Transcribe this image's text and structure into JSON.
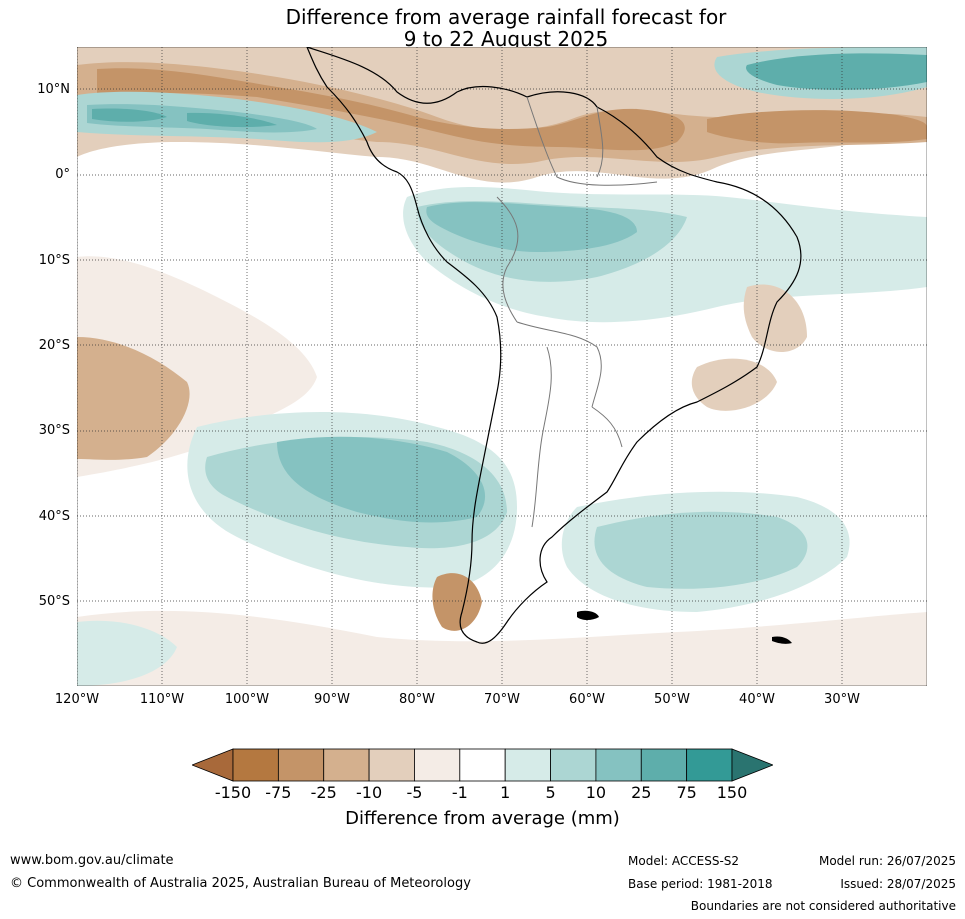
{
  "title": {
    "line1": "Difference from average rainfall forecast for",
    "line2": "9 to 22 August 2025"
  },
  "map": {
    "lat_labels": [
      "10°N",
      "0°",
      "10°S",
      "20°S",
      "30°S",
      "40°S",
      "50°S"
    ],
    "lon_labels": [
      "120°W",
      "110°W",
      "100°W",
      "90°W",
      "80°W",
      "70°W",
      "60°W",
      "50°W",
      "40°W",
      "30°W"
    ]
  },
  "colorbar": {
    "title": "Difference from average (mm)",
    "ticks": [
      "-150",
      "-75",
      "-25",
      "-10",
      "-5",
      "-1",
      "1",
      "5",
      "10",
      "25",
      "75",
      "150"
    ],
    "colors": [
      "#a8693a",
      "#b47840",
      "#c49468",
      "#d4b08e",
      "#e3cfbc",
      "#f4ece6",
      "#ffffff",
      "#d6ebe8",
      "#acd6d3",
      "#85c2c1",
      "#5eaeab",
      "#339a96",
      "#2a7470"
    ]
  },
  "footer": {
    "url": "www.bom.gov.au/climate",
    "copyright": "© Commonwealth of Australia 2025, Australian Bureau of Meteorology",
    "model": "Model: ACCESS-S2",
    "base_period": "Base period: 1981-2018",
    "model_run": "Model run: 26/07/2025",
    "issued": "Issued: 28/07/2025",
    "disclaimer": "Boundaries are not considered authoritative"
  }
}
